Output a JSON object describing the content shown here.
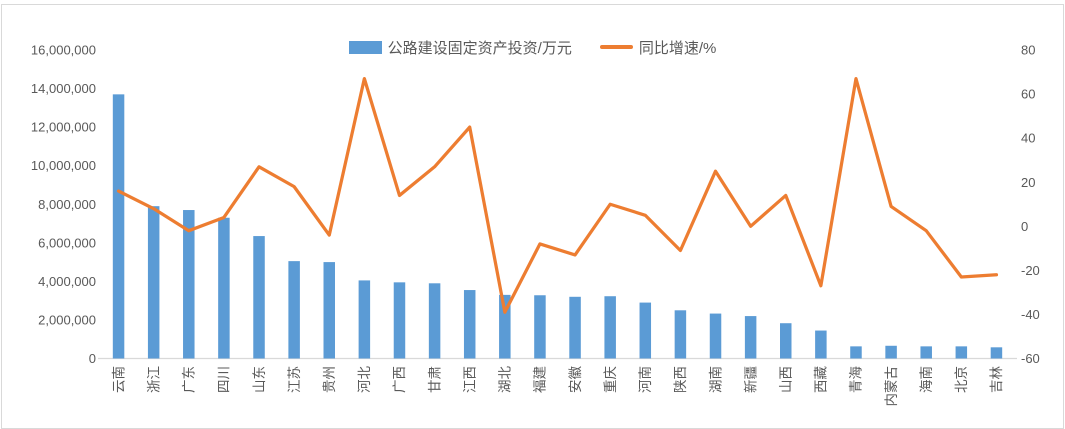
{
  "chart_data": {
    "type": "combo",
    "title": "",
    "categories": [
      "云南",
      "浙江",
      "广东",
      "四川",
      "山东",
      "江苏",
      "贵州",
      "河北",
      "广西",
      "甘肃",
      "江西",
      "湖北",
      "福建",
      "安徽",
      "重庆",
      "河南",
      "陕西",
      "湖南",
      "新疆",
      "山西",
      "西藏",
      "青海",
      "内蒙古",
      "海南",
      "北京",
      "吉林"
    ],
    "series": [
      {
        "name": "公路建设固定资产投资/万元",
        "type": "bar",
        "y_axis": "left",
        "color": "#5B9BD5",
        "values": [
          13700000,
          7900000,
          7700000,
          7300000,
          6350000,
          5050000,
          5000000,
          4050000,
          3950000,
          3900000,
          3550000,
          3300000,
          3280000,
          3200000,
          3230000,
          2900000,
          2500000,
          2330000,
          2200000,
          1830000,
          1450000,
          630000,
          660000,
          630000,
          630000,
          580000
        ]
      },
      {
        "name": "同比增速/%",
        "type": "line",
        "y_axis": "right",
        "color": "#ED7D31",
        "values": [
          16,
          8,
          -2,
          4,
          27,
          18,
          -4,
          67,
          14,
          27,
          45,
          -39,
          -8,
          -13,
          10,
          5,
          -11,
          25,
          0,
          14,
          -27,
          67,
          9,
          -2,
          -23,
          -22
        ]
      }
    ],
    "left_axis": {
      "min": 0,
      "max": 16000000,
      "tick_step": 2000000,
      "tick_labels": [
        "0",
        "2,000,000",
        "4,000,000",
        "6,000,000",
        "8,000,000",
        "10,000,000",
        "12,000,000",
        "14,000,000",
        "16,000,000"
      ]
    },
    "right_axis": {
      "min": -60,
      "max": 80,
      "tick_step": 20,
      "tick_labels": [
        "-60",
        "-40",
        "-20",
        "0",
        "20",
        "40",
        "60",
        "80"
      ]
    },
    "grid": false,
    "legend_position": "top-center",
    "styles": {
      "text_color": "#595959",
      "border_color": "#D9D9D9",
      "background": "#FFFFFF"
    }
  }
}
